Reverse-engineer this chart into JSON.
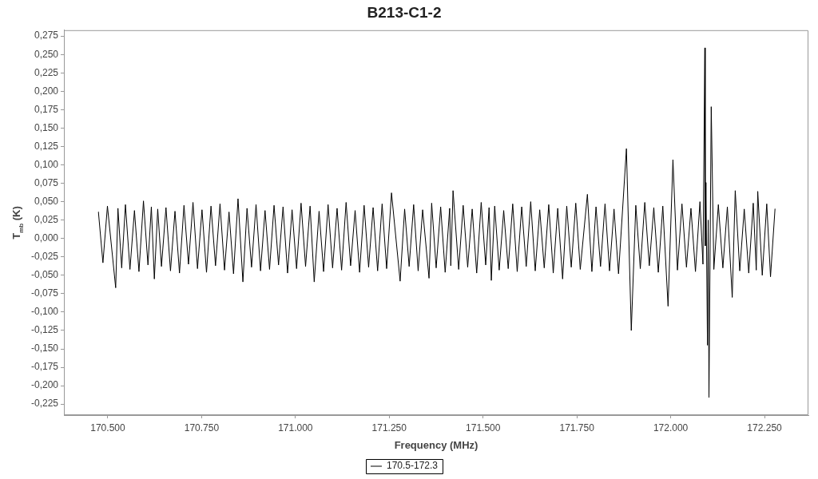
{
  "chart_data": {
    "type": "line",
    "title": "B213-C1-2",
    "xlabel": "Frequency (MHz)",
    "ylabel": "T$_{mb}$ (K)",
    "legend": "bottom",
    "x": [
      170475,
      170487,
      170499,
      170521,
      170527,
      170537,
      170547,
      170559,
      170571,
      170583,
      170595,
      170607,
      170616,
      170624,
      170633,
      170643,
      170655,
      170667,
      170679,
      170691,
      170703,
      170715,
      170727,
      170739,
      170751,
      170763,
      170775,
      170787,
      170799,
      170811,
      170823,
      170835,
      170847,
      170860,
      170871,
      170883,
      170895,
      170907,
      170919,
      170931,
      170943,
      170955,
      170967,
      170979,
      170991,
      171003,
      171015,
      171027,
      171039,
      171050,
      171063,
      171075,
      171087,
      171099,
      171111,
      171123,
      171135,
      171147,
      171159,
      171171,
      171183,
      171195,
      171207,
      171219,
      171231,
      171243,
      171256,
      171279,
      171291,
      171303,
      171315,
      171327,
      171339,
      171356,
      171363,
      171375,
      171387,
      171399,
      171411,
      171414,
      171420,
      171435,
      171447,
      171459,
      171471,
      171483,
      171495,
      171507,
      171516,
      171522,
      171531,
      171543,
      171555,
      171567,
      171579,
      171591,
      171603,
      171615,
      171627,
      171639,
      171651,
      171663,
      171675,
      171687,
      171699,
      171712,
      171723,
      171735,
      171747,
      171759,
      171778,
      171790,
      171801,
      171813,
      171825,
      171837,
      171849,
      171861,
      171882,
      171895,
      171907,
      171919,
      171931,
      171943,
      171955,
      171967,
      171979,
      171993,
      172006,
      172018,
      172030,
      172042,
      172054,
      172066,
      172078,
      172086,
      172091,
      172092,
      172094,
      172098,
      172100,
      172102,
      172108,
      172115,
      172127,
      172139,
      172151,
      172164,
      172172,
      172184,
      172196,
      172208,
      172220,
      172228,
      172232,
      172244,
      172256,
      172266,
      172278
    ],
    "series": [
      {
        "name": "170.5-172.3",
        "color": "#000000",
        "values": [
          0.036,
          -0.033,
          0.044,
          -0.067,
          0.041,
          -0.04,
          0.046,
          -0.042,
          0.038,
          -0.045,
          0.051,
          -0.036,
          0.043,
          -0.055,
          0.04,
          -0.038,
          0.042,
          -0.044,
          0.037,
          -0.047,
          0.045,
          -0.035,
          0.049,
          -0.041,
          0.039,
          -0.046,
          0.044,
          -0.037,
          0.047,
          -0.043,
          0.036,
          -0.048,
          0.054,
          -0.059,
          0.041,
          -0.039,
          0.046,
          -0.044,
          0.038,
          -0.042,
          0.045,
          -0.036,
          0.043,
          -0.047,
          0.039,
          -0.041,
          0.048,
          -0.038,
          0.044,
          -0.059,
          0.037,
          -0.045,
          0.046,
          -0.04,
          0.041,
          -0.043,
          0.049,
          -0.037,
          0.038,
          -0.046,
          0.045,
          -0.039,
          0.042,
          -0.044,
          0.047,
          -0.041,
          0.062,
          -0.058,
          0.04,
          -0.038,
          0.046,
          -0.044,
          0.039,
          -0.054,
          0.048,
          -0.04,
          0.043,
          -0.046,
          0.041,
          -0.037,
          0.065,
          -0.042,
          0.045,
          -0.039,
          0.04,
          -0.047,
          0.049,
          -0.036,
          0.042,
          -0.057,
          0.044,
          -0.043,
          0.038,
          -0.041,
          0.047,
          -0.045,
          0.043,
          -0.038,
          0.05,
          -0.044,
          0.039,
          -0.04,
          0.046,
          -0.047,
          0.041,
          -0.055,
          0.044,
          -0.039,
          0.048,
          -0.042,
          0.06,
          -0.045,
          0.043,
          -0.038,
          0.047,
          -0.044,
          0.04,
          -0.048,
          0.122,
          -0.125,
          0.045,
          -0.041,
          0.049,
          -0.037,
          0.042,
          -0.046,
          0.044,
          -0.092,
          0.107,
          -0.043,
          0.047,
          -0.039,
          0.041,
          -0.045,
          0.05,
          -0.035,
          0.259,
          -0.01,
          0.076,
          -0.145,
          0.025,
          -0.216,
          0.179,
          -0.042,
          0.046,
          -0.04,
          0.043,
          -0.08,
          0.065,
          -0.044,
          0.04,
          -0.047,
          0.048,
          -0.043,
          0.064,
          -0.05,
          0.047,
          -0.052,
          0.04
        ]
      }
    ],
    "xlim": [
      170383,
      172367
    ],
    "xticks": [
      {
        "value": 170500,
        "label": "170.500"
      },
      {
        "value": 170750,
        "label": "170.750"
      },
      {
        "value": 171000,
        "label": "171.000"
      },
      {
        "value": 171250,
        "label": "171.250"
      },
      {
        "value": 171500,
        "label": "171.500"
      },
      {
        "value": 171750,
        "label": "171.750"
      },
      {
        "value": 172000,
        "label": "172.000"
      },
      {
        "value": 172250,
        "label": "172.250"
      }
    ],
    "ylim": [
      -0.24,
      0.283
    ],
    "yticks": [
      {
        "value": -0.225,
        "label": "-0,225"
      },
      {
        "value": -0.2,
        "label": "-0,200"
      },
      {
        "value": -0.175,
        "label": "-0,175"
      },
      {
        "value": -0.15,
        "label": "-0,150"
      },
      {
        "value": -0.125,
        "label": "-0,125"
      },
      {
        "value": -0.1,
        "label": "-0,100"
      },
      {
        "value": -0.075,
        "label": "-0,075"
      },
      {
        "value": -0.05,
        "label": "-0,050"
      },
      {
        "value": -0.025,
        "label": "-0,025"
      },
      {
        "value": 0,
        "label": "0,000"
      },
      {
        "value": 0.025,
        "label": "0,025"
      },
      {
        "value": 0.05,
        "label": "0,050"
      },
      {
        "value": 0.075,
        "label": "0,075"
      },
      {
        "value": 0.1,
        "label": "0,100"
      },
      {
        "value": 0.125,
        "label": "0,125"
      },
      {
        "value": 0.15,
        "label": "0,150"
      },
      {
        "value": 0.175,
        "label": "0,175"
      },
      {
        "value": 0.2,
        "label": "0,200"
      },
      {
        "value": 0.225,
        "label": "0,225"
      },
      {
        "value": 0.25,
        "label": "0,250"
      },
      {
        "value": 0.275,
        "label": "0,275"
      }
    ]
  }
}
